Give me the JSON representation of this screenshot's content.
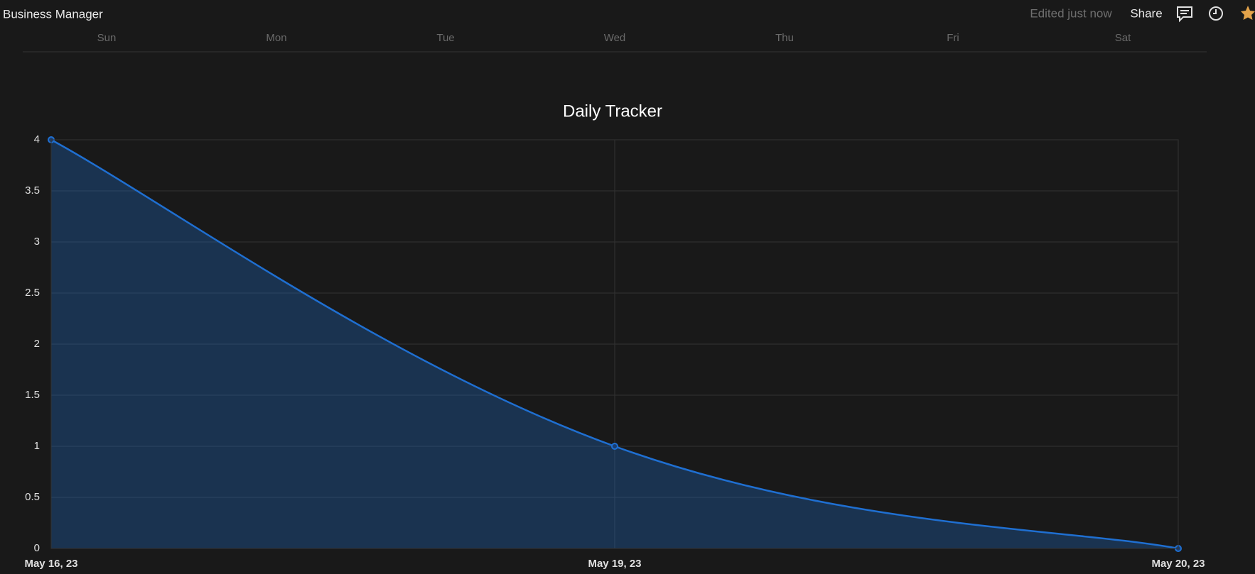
{
  "header": {
    "title": "Business Manager",
    "status": "Edited just now",
    "share": "Share"
  },
  "weekdays": [
    "Sun",
    "Mon",
    "Tue",
    "Wed",
    "Thu",
    "Fri",
    "Sat"
  ],
  "chart_data": {
    "type": "line",
    "title": "Daily Tracker",
    "categories": [
      "May 16, 23",
      "May 19, 23",
      "May 20, 23"
    ],
    "values": [
      4,
      1,
      0
    ],
    "color": "#1f6fd1",
    "fill": true,
    "ylim": [
      0,
      4
    ],
    "yticks": [
      0,
      0.5,
      1,
      1.5,
      2,
      2.5,
      3,
      3.5,
      4
    ],
    "grid": true
  }
}
